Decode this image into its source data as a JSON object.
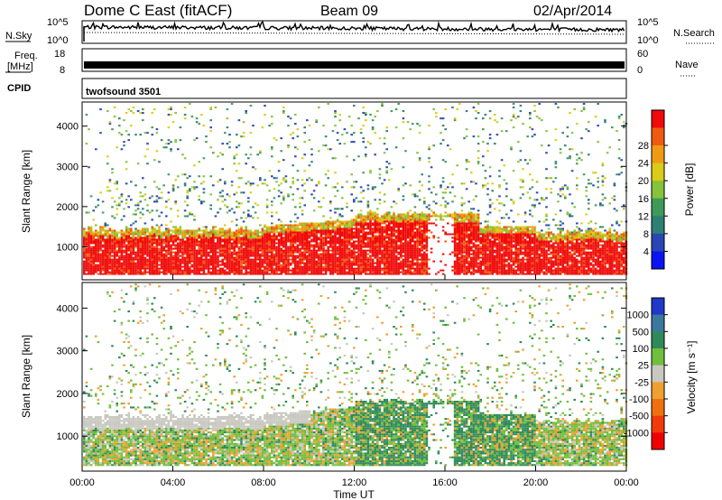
{
  "header": {
    "station": "Dome C East (fitACF)",
    "beam": "Beam 09",
    "date": "02/Apr/2014"
  },
  "info_panels": {
    "nsky_label": "N.Sky",
    "nsky_ticks": [
      "10^5",
      "10^0"
    ],
    "nsearch_label": "N.Search",
    "nsearch_ticks": [
      "10^5",
      "10^0"
    ],
    "freq_label_line1": "Freq.",
    "freq_label_line2": "[MHz]",
    "freq_ticks": [
      "18",
      "8"
    ],
    "nave_label": "Nave",
    "nave_ticks": [
      "60",
      "0"
    ],
    "cpid_label": "CPID",
    "cpid_value": "twofsound 3501"
  },
  "chart_data": [
    {
      "type": "heatmap",
      "title": "",
      "ylabel": "Slant Range [km]",
      "y_ticks": [
        1000,
        2000,
        3000,
        4000
      ],
      "ylim": [
        180,
        4600
      ],
      "xlim": [
        0,
        24
      ],
      "colorbar": {
        "label": "Power [dB]",
        "ticks": [
          "4",
          "8",
          "12",
          "16",
          "20",
          "24",
          "28"
        ],
        "range": [
          0,
          32
        ],
        "colors": [
          "#0a14f0",
          "#2846b4",
          "#2e7f74",
          "#3f9a58",
          "#86c23a",
          "#d8cc18",
          "#f09a14",
          "#f05a10",
          "#f00a0a"
        ]
      }
    },
    {
      "type": "heatmap",
      "title": "",
      "ylabel": "Slant Range [km]",
      "y_ticks": [
        1000,
        2000,
        3000,
        4000
      ],
      "ylim": [
        180,
        4600
      ],
      "xlim": [
        0,
        24
      ],
      "xlabel": "Time UT",
      "x_ticks": [
        "00:00",
        "04:00",
        "08:00",
        "12:00",
        "16:00",
        "20:00",
        "00:00"
      ],
      "colorbar": {
        "label": "Velocity [m s⁻¹]",
        "ticks": [
          "1000",
          "500",
          "100",
          "25",
          "-25",
          "-100",
          "-500",
          "-1000"
        ],
        "colors": [
          "#2038c8",
          "#3a78a0",
          "#2f8a5a",
          "#6fbf3c",
          "#c8c8c0",
          "#f0a030",
          "#f07010",
          "#f03a0a",
          "#f00000"
        ]
      }
    }
  ]
}
